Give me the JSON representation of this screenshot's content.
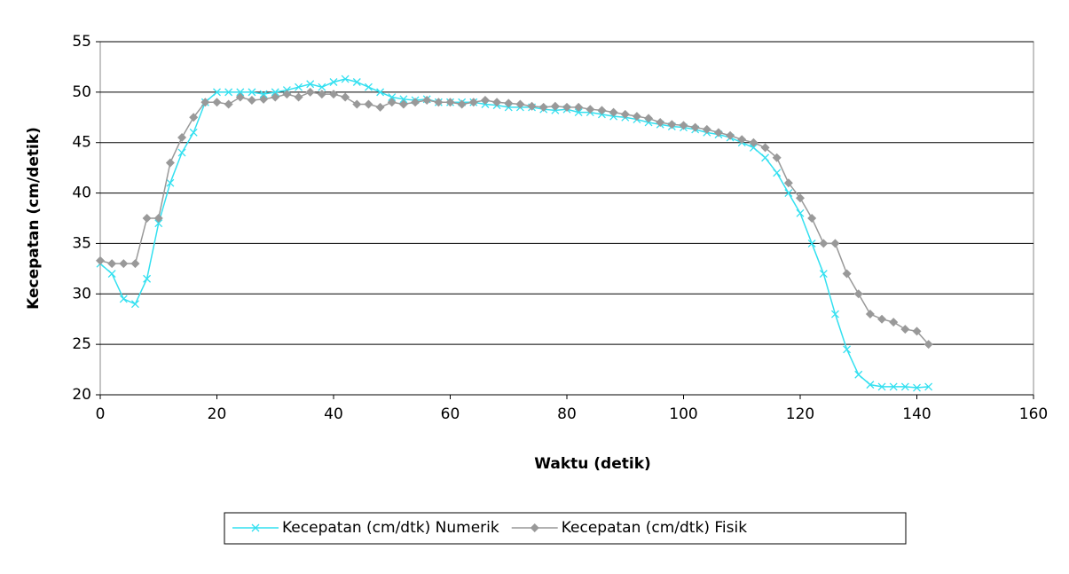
{
  "chart_data": {
    "type": "line",
    "xlabel": "Waktu (detik)",
    "ylabel": "Kecepatan (cm/detik)",
    "x": [
      0,
      2,
      4,
      6,
      8,
      10,
      12,
      14,
      16,
      18,
      20,
      22,
      24,
      26,
      28,
      30,
      32,
      34,
      36,
      38,
      40,
      42,
      44,
      46,
      48,
      50,
      52,
      54,
      56,
      58,
      60,
      62,
      64,
      66,
      68,
      70,
      72,
      74,
      76,
      78,
      80,
      82,
      84,
      86,
      88,
      90,
      92,
      94,
      96,
      98,
      100,
      102,
      104,
      106,
      108,
      110,
      112,
      114,
      116,
      118,
      120,
      122,
      124,
      126,
      128,
      130,
      132,
      134,
      136,
      138,
      140,
      142
    ],
    "series": [
      {
        "name": "Kecepatan (cm/dtk) Numerik",
        "color": "#33e0f0",
        "marker": "x",
        "values": [
          33,
          32,
          29.5,
          29,
          31.5,
          37,
          41,
          44,
          46,
          49,
          50,
          50,
          50,
          50,
          49.8,
          50,
          50.2,
          50.5,
          50.8,
          50.5,
          51,
          51.3,
          51,
          50.5,
          50,
          49.5,
          49.3,
          49.2,
          49.3,
          49,
          49,
          49,
          49,
          48.8,
          48.7,
          48.5,
          48.5,
          48.5,
          48.3,
          48.2,
          48.3,
          48,
          48,
          47.8,
          47.6,
          47.5,
          47.3,
          47,
          46.8,
          46.6,
          46.5,
          46.3,
          46,
          45.8,
          45.5,
          45,
          44.5,
          43.5,
          42,
          40,
          38,
          35,
          32,
          28,
          24.5,
          22,
          21,
          20.8,
          20.8,
          20.8,
          20.7,
          20.8
        ]
      },
      {
        "name": "Kecepatan (cm/dtk) Fisik",
        "color": "#999999",
        "marker": "diamond",
        "values": [
          33.3,
          33,
          33,
          33,
          37.5,
          37.5,
          43,
          45.5,
          47.5,
          49,
          49,
          48.8,
          49.5,
          49.2,
          49.3,
          49.5,
          49.8,
          49.5,
          50,
          49.8,
          49.8,
          49.5,
          48.8,
          48.8,
          48.5,
          49,
          48.8,
          49,
          49.2,
          49,
          49,
          48.8,
          49,
          49.2,
          49,
          48.9,
          48.8,
          48.6,
          48.5,
          48.6,
          48.5,
          48.5,
          48.3,
          48.2,
          48,
          47.8,
          47.6,
          47.4,
          47,
          46.8,
          46.7,
          46.5,
          46.3,
          46,
          45.7,
          45.3,
          45,
          44.5,
          43.5,
          41,
          39.5,
          37.5,
          35,
          35,
          32,
          30,
          28,
          27.5,
          27.2,
          26.5,
          26.3,
          25
        ]
      }
    ],
    "xlim": [
      0,
      160
    ],
    "xticks": [
      0,
      20,
      40,
      60,
      80,
      100,
      120,
      140,
      160
    ],
    "ylim": [
      20,
      55
    ],
    "yticks": [
      20,
      25,
      30,
      35,
      40,
      45,
      50,
      55
    ],
    "grid": true,
    "legend": "bottom"
  }
}
